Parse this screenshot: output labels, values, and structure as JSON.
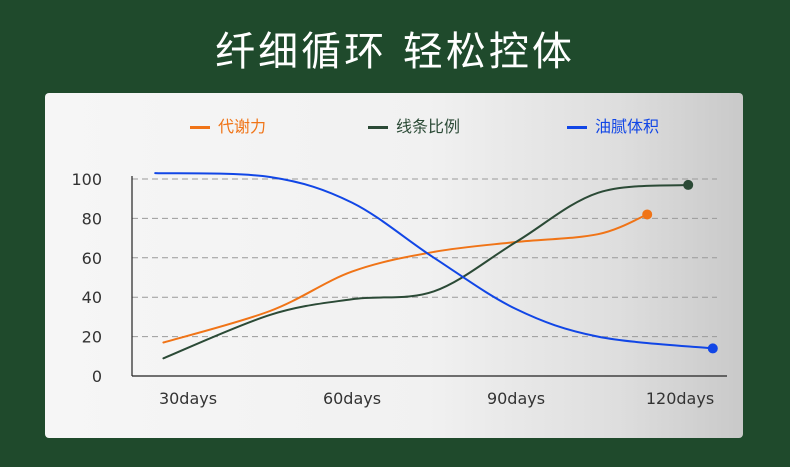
{
  "headline": "纤细循环 轻松控体",
  "colors": {
    "background": "#1f4a2c",
    "metabolism": "#f07417",
    "line_ratio": "#2b4a36",
    "body_fat": "#1146e6"
  },
  "chart_data": {
    "type": "line",
    "categories": [
      "30days",
      "60days",
      "90days",
      "120days"
    ],
    "ylim": [
      0,
      100
    ],
    "yticks": [
      0,
      20,
      40,
      60,
      80,
      100
    ],
    "grid": "horizontal dashed",
    "legend_position": "top",
    "series": [
      {
        "name": "代谢力",
        "color": "#f07417",
        "smooth": true,
        "end_marker": true,
        "points": [
          [
            0.7,
            17
          ],
          [
            2.0,
            33
          ],
          [
            3.0,
            53
          ],
          [
            4.0,
            63
          ],
          [
            5.0,
            68
          ],
          [
            6.0,
            72
          ],
          [
            6.6,
            82
          ]
        ]
      },
      {
        "name": "线条比例",
        "color": "#2b4a36",
        "smooth": true,
        "end_marker": true,
        "points": [
          [
            0.7,
            9
          ],
          [
            2.0,
            31
          ],
          [
            3.0,
            39
          ],
          [
            4.0,
            43
          ],
          [
            5.0,
            68
          ],
          [
            6.0,
            93
          ],
          [
            7.1,
            97
          ]
        ]
      },
      {
        "name": "油腻体积",
        "color": "#1146e6",
        "smooth": true,
        "end_marker": true,
        "points": [
          [
            0.6,
            103
          ],
          [
            2.0,
            101
          ],
          [
            3.0,
            88
          ],
          [
            4.0,
            60
          ],
          [
            5.0,
            34
          ],
          [
            6.0,
            20
          ],
          [
            7.4,
            14
          ]
        ]
      }
    ]
  }
}
